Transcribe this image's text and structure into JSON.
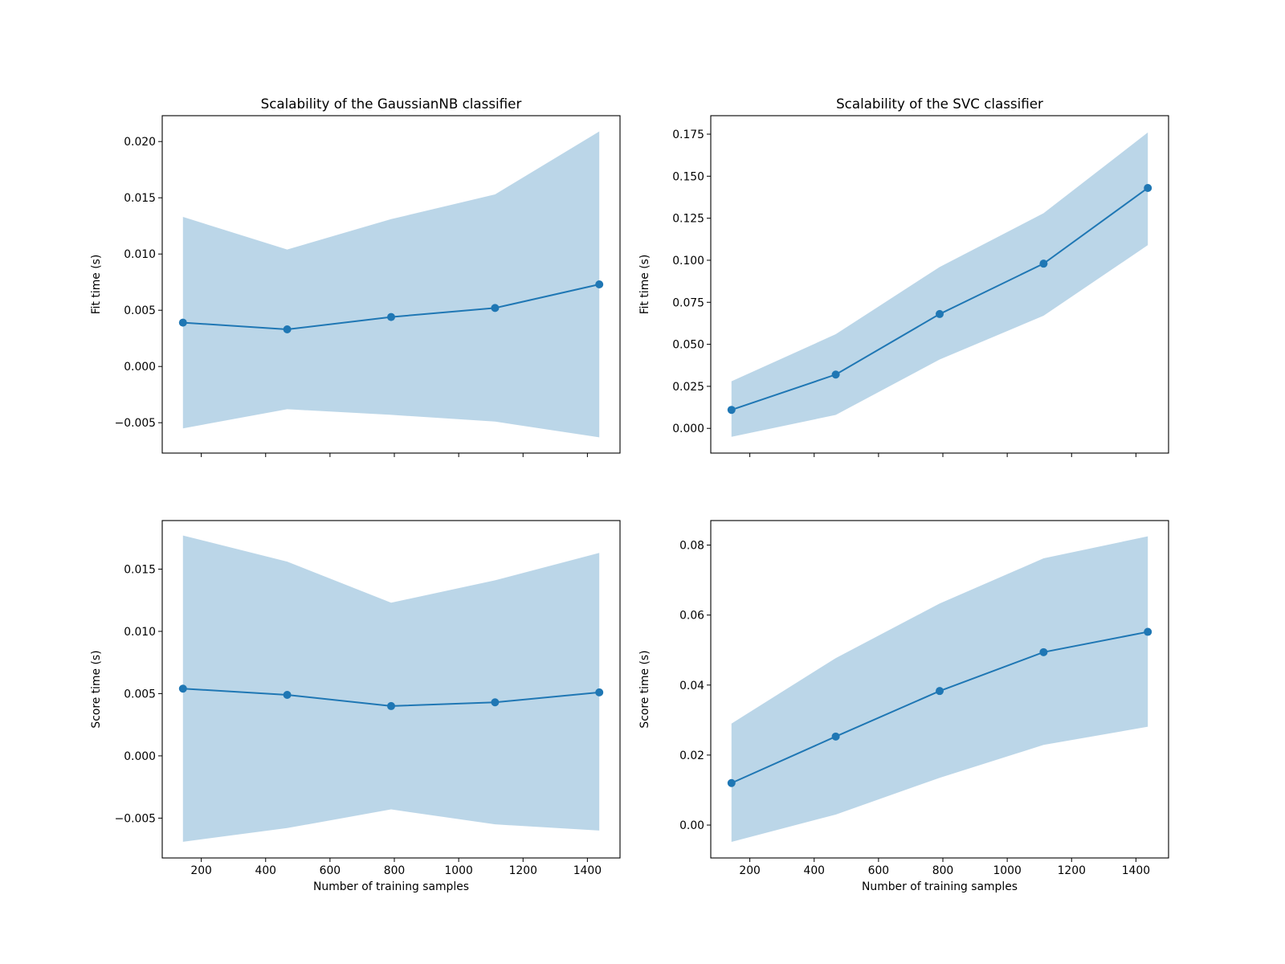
{
  "chart_data": [
    {
      "type": "line",
      "title": "Scalability of the GaussianNB classifier",
      "xlabel": "",
      "ylabel": "Fit time (s)",
      "x": [
        143,
        467,
        790,
        1113,
        1437
      ],
      "series": [
        {
          "values": [
            0.0039,
            0.0033,
            0.0044,
            0.0052,
            0.0073
          ],
          "band_upper": [
            0.0133,
            0.0104,
            0.0131,
            0.0153,
            0.0209
          ],
          "band_lower": [
            -0.0055,
            -0.0038,
            -0.0043,
            -0.0049,
            -0.0063
          ]
        }
      ],
      "xlim": [
        78.6,
        1501.4
      ],
      "ylim": [
        -0.0077,
        0.0223
      ],
      "xticks": [
        200,
        400,
        600,
        800,
        1000,
        1200,
        1400
      ],
      "xticklabels": [],
      "yticks": [
        -0.005,
        0.0,
        0.005,
        0.01,
        0.015,
        0.02
      ],
      "yticklabels": [
        "−0.005",
        "0.000",
        "0.005",
        "0.010",
        "0.015",
        "0.020"
      ],
      "grid": false
    },
    {
      "type": "line",
      "title": "Scalability of the SVC classifier",
      "xlabel": "",
      "ylabel": "Fit time (s)",
      "x": [
        143,
        467,
        790,
        1113,
        1437
      ],
      "series": [
        {
          "values": [
            0.011,
            0.032,
            0.068,
            0.098,
            0.143
          ],
          "band_upper": [
            0.028,
            0.056,
            0.096,
            0.128,
            0.176
          ],
          "band_lower": [
            -0.005,
            0.008,
            0.041,
            0.067,
            0.109
          ]
        }
      ],
      "xlim": [
        78.6,
        1501.4
      ],
      "ylim": [
        -0.0147,
        0.186
      ],
      "xticks": [
        200,
        400,
        600,
        800,
        1000,
        1200,
        1400
      ],
      "xticklabels": [],
      "yticks": [
        0.0,
        0.025,
        0.05,
        0.075,
        0.1,
        0.125,
        0.15,
        0.175
      ],
      "yticklabels": [
        "0.000",
        "0.025",
        "0.050",
        "0.075",
        "0.100",
        "0.125",
        "0.150",
        "0.175"
      ],
      "grid": false
    },
    {
      "type": "line",
      "title": "",
      "xlabel": "Number of training samples",
      "ylabel": "Score time (s)",
      "x": [
        143,
        467,
        790,
        1113,
        1437
      ],
      "series": [
        {
          "values": [
            0.0054,
            0.0049,
            0.004,
            0.0043,
            0.0051
          ],
          "band_upper": [
            0.0177,
            0.0156,
            0.0123,
            0.0141,
            0.0163
          ],
          "band_lower": [
            -0.0069,
            -0.0058,
            -0.0043,
            -0.0055,
            -0.006
          ]
        }
      ],
      "xlim": [
        78.6,
        1501.4
      ],
      "ylim": [
        -0.0082,
        0.0189
      ],
      "xticks": [
        200,
        400,
        600,
        800,
        1000,
        1200,
        1400
      ],
      "xticklabels": [
        "200",
        "400",
        "600",
        "800",
        "1000",
        "1200",
        "1400"
      ],
      "yticks": [
        -0.005,
        0.0,
        0.005,
        0.01,
        0.015
      ],
      "yticklabels": [
        "−0.005",
        "0.000",
        "0.005",
        "0.010",
        "0.015"
      ],
      "grid": false
    },
    {
      "type": "line",
      "title": "",
      "xlabel": "Number of training samples",
      "ylabel": "Score time (s)",
      "x": [
        143,
        467,
        790,
        1113,
        1437
      ],
      "series": [
        {
          "values": [
            0.012,
            0.0253,
            0.0383,
            0.0494,
            0.0552
          ],
          "band_upper": [
            0.029,
            0.0477,
            0.0633,
            0.0762,
            0.0825
          ],
          "band_lower": [
            -0.0048,
            0.003,
            0.0135,
            0.0229,
            0.0281
          ]
        }
      ],
      "xlim": [
        78.6,
        1501.4
      ],
      "ylim": [
        -0.0094,
        0.087
      ],
      "xticks": [
        200,
        400,
        600,
        800,
        1000,
        1200,
        1400
      ],
      "xticklabels": [
        "200",
        "400",
        "600",
        "800",
        "1000",
        "1200",
        "1400"
      ],
      "yticks": [
        0.0,
        0.02,
        0.04,
        0.06,
        0.08
      ],
      "yticklabels": [
        "0.00",
        "0.02",
        "0.04",
        "0.06",
        "0.08"
      ],
      "grid": false
    }
  ],
  "colors": {
    "line": "#1f77b4",
    "band": "#1f77b4",
    "band_opacity": 0.3
  }
}
